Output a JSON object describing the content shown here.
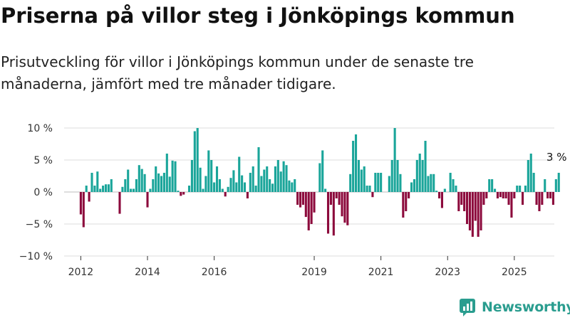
{
  "title": "Priserna på villor steg i Jönköpings kommun",
  "subtitle": "Prisutveckling för villor i Jönköpings kommun under de senaste tre månaderna, jämfört med tre månader tidigare.",
  "brand": {
    "name": "Newsworthy",
    "icon": "newsworthy-logo-icon",
    "color": "#2a9d8f"
  },
  "chart_data": {
    "type": "bar",
    "x_unit": "month",
    "x_start": "2012-01",
    "x_end": "2025-06",
    "xlim": [
      2011.5,
      2026.2
    ],
    "ylim": [
      -10,
      10
    ],
    "y_ticks": [
      10,
      5,
      0,
      -5,
      -10
    ],
    "y_tick_labels": [
      "10 %",
      "5 %",
      "0 %",
      "−5 %",
      "−10 %"
    ],
    "x_ticks": [
      2012,
      2014,
      2016,
      2019,
      2021,
      2023,
      2025
    ],
    "x_tick_labels": [
      "2012",
      "2014",
      "2016",
      "2019",
      "2021",
      "2023",
      "2025"
    ],
    "grid": true,
    "positive_color": "#1aa59a",
    "negative_color": "#8c0a3c",
    "annotation": {
      "text": "3 %"
    },
    "values": [
      -3.5,
      -5.5,
      1.0,
      -1.5,
      3.0,
      1.0,
      3.2,
      0.5,
      1.0,
      1.2,
      1.2,
      2.0,
      0.0,
      0.0,
      -3.4,
      0.8,
      2.0,
      3.5,
      0.5,
      0.5,
      2.0,
      4.2,
      3.6,
      2.8,
      -2.4,
      0.5,
      2.0,
      4.0,
      2.9,
      2.5,
      3.0,
      6.0,
      2.4,
      4.9,
      4.8,
      0.2,
      -0.6,
      -0.4,
      0.0,
      1.0,
      5.0,
      9.5,
      10.0,
      3.8,
      0.5,
      2.5,
      6.5,
      5.0,
      1.5,
      4.0,
      2.0,
      0.5,
      -0.7,
      0.8,
      2.2,
      3.4,
      1.5,
      5.5,
      2.6,
      1.5,
      -1.0,
      3.0,
      4.0,
      1.0,
      7.0,
      2.5,
      3.5,
      4.0,
      2.0,
      1.3,
      4.0,
      5.0,
      3.2,
      4.8,
      4.2,
      1.8,
      1.5,
      2.0,
      -2.0,
      -2.4,
      -2.0,
      -3.9,
      -6.0,
      -5.0,
      -3.2,
      0.0,
      4.5,
      6.5,
      0.5,
      -6.5,
      -2.0,
      -6.8,
      -1.0,
      -2.0,
      -3.8,
      -4.8,
      -5.2,
      2.8,
      8.0,
      9.0,
      5.0,
      3.5,
      4.0,
      1.0,
      1.0,
      -0.8,
      3.0,
      3.0,
      3.0,
      0.0,
      0.0,
      2.5,
      5.0,
      10.0,
      5.0,
      2.8,
      -4.0,
      -3.0,
      -1.0,
      1.5,
      2.0,
      5.0,
      6.0,
      5.0,
      8.0,
      2.5,
      2.8,
      2.8,
      0.2,
      -1.0,
      -2.5,
      0.5,
      0.0,
      3.0,
      2.0,
      1.0,
      -3.0,
      -2.0,
      -3.0,
      -5.0,
      -6.0,
      -7.0,
      -4.5,
      -7.0,
      -6.0,
      -2.0,
      -1.0,
      2.0,
      2.0,
      0.5,
      -1.0,
      -0.8,
      -1.0,
      -1.0,
      -2.0,
      -4.0,
      -1.0,
      1.0,
      1.0,
      -2.0,
      1.0,
      5.0,
      6.0,
      3.0,
      -2.0,
      -3.0,
      -2.0,
      2.0,
      -1.0,
      -1.0,
      -2.0,
      2.0,
      3.0
    ]
  }
}
